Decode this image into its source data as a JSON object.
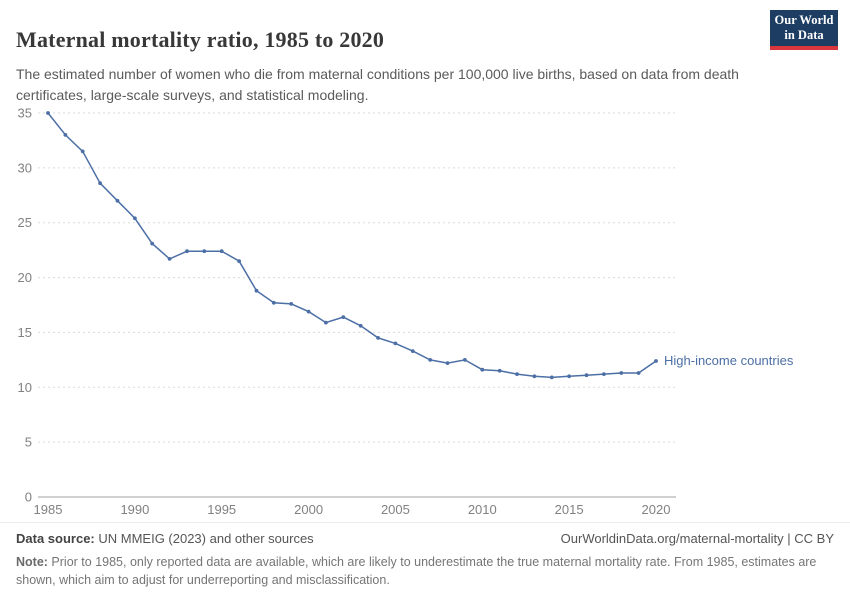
{
  "header": {
    "title": "Maternal mortality ratio, 1985 to 2020",
    "subtitle": "The estimated number of women who die from maternal conditions per 100,000 live births, based on data from death certificates, large-scale surveys, and statistical modeling.",
    "logo": {
      "line1": "Our World",
      "line2": "in Data",
      "bg_color": "#1d3d63",
      "accent_color": "#d9363e"
    }
  },
  "chart_data": {
    "type": "line",
    "title": "Maternal mortality ratio, 1985 to 2020",
    "xlabel": "",
    "ylabel": "",
    "xlim": [
      1985,
      2020
    ],
    "ylim": [
      0,
      35
    ],
    "x_ticks": [
      1985,
      1990,
      1995,
      2000,
      2005,
      2010,
      2015,
      2020
    ],
    "y_ticks": [
      0,
      5,
      10,
      15,
      20,
      25,
      30,
      35
    ],
    "grid": "horizontal-dashed",
    "legend_position": "end-of-line-label",
    "colors": {
      "grid_line": "#dadada",
      "axis_line": "#a1a1a1",
      "tick_label": "#818181"
    },
    "series": [
      {
        "name": "High-income countries",
        "color": "#4c6fa5",
        "x": [
          1985,
          1986,
          1987,
          1988,
          1989,
          1990,
          1991,
          1992,
          1993,
          1994,
          1995,
          1996,
          1997,
          1998,
          1999,
          2000,
          2001,
          2002,
          2003,
          2004,
          2005,
          2006,
          2007,
          2008,
          2009,
          2010,
          2011,
          2012,
          2013,
          2014,
          2015,
          2016,
          2017,
          2018,
          2019,
          2020
        ],
        "values": [
          35,
          33,
          31.5,
          28.6,
          27,
          25.4,
          23.1,
          21.7,
          22.4,
          22.4,
          22.4,
          21.5,
          18.8,
          17.7,
          17.6,
          16.9,
          15.9,
          16.4,
          15.6,
          14.5,
          14,
          13.3,
          12.5,
          12.2,
          12.5,
          11.6,
          11.5,
          11.2,
          11,
          10.9,
          11,
          11.1,
          11.2,
          11.3,
          11.3,
          12.4
        ]
      }
    ]
  },
  "footer": {
    "source_label": "Data source:",
    "source_text": " UN MMEIG (2023) and other sources",
    "rights": "OurWorldinData.org/maternal-mortality | CC BY",
    "note_label": "Note:",
    "note_text": " Prior to 1985, only reported data are available, which are likely to underestimate the true maternal mortality rate. From 1985, estimates are shown, which aim to adjust for underreporting and misclassification."
  }
}
